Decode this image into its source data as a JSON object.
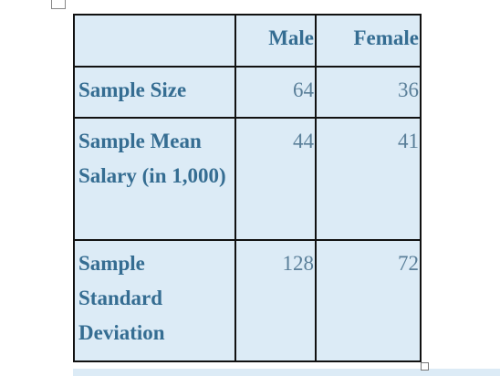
{
  "table": {
    "columns": [
      "Male",
      "Female"
    ],
    "rows": [
      {
        "label": "Sample Size",
        "values": [
          64,
          36
        ]
      },
      {
        "label": "Sample Mean Salary (in 1,000)",
        "values": [
          44,
          41
        ]
      },
      {
        "label": "Sample Standard Deviation",
        "values": [
          128,
          72
        ]
      }
    ]
  }
}
